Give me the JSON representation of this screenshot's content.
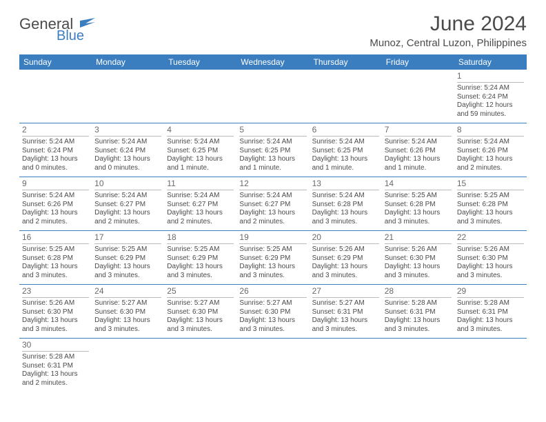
{
  "logo": {
    "textMain": "General",
    "textSub": "Blue"
  },
  "header": {
    "title": "June 2024",
    "subtitle": "Munoz, Central Luzon, Philippines"
  },
  "colors": {
    "headerBar": "#3b7ec0",
    "headerText": "#ffffff",
    "bodyText": "#4a4a4a",
    "dayNumBorder": "#bbbbbb",
    "rowBorder": "#3b7ec0"
  },
  "dayHeaders": [
    "Sunday",
    "Monday",
    "Tuesday",
    "Wednesday",
    "Thursday",
    "Friday",
    "Saturday"
  ],
  "weeks": [
    [
      null,
      null,
      null,
      null,
      null,
      null,
      {
        "n": "1",
        "sr": "Sunrise: 5:24 AM",
        "ss": "Sunset: 6:24 PM",
        "dl": "Daylight: 12 hours and 59 minutes."
      }
    ],
    [
      {
        "n": "2",
        "sr": "Sunrise: 5:24 AM",
        "ss": "Sunset: 6:24 PM",
        "dl": "Daylight: 13 hours and 0 minutes."
      },
      {
        "n": "3",
        "sr": "Sunrise: 5:24 AM",
        "ss": "Sunset: 6:24 PM",
        "dl": "Daylight: 13 hours and 0 minutes."
      },
      {
        "n": "4",
        "sr": "Sunrise: 5:24 AM",
        "ss": "Sunset: 6:25 PM",
        "dl": "Daylight: 13 hours and 1 minute."
      },
      {
        "n": "5",
        "sr": "Sunrise: 5:24 AM",
        "ss": "Sunset: 6:25 PM",
        "dl": "Daylight: 13 hours and 1 minute."
      },
      {
        "n": "6",
        "sr": "Sunrise: 5:24 AM",
        "ss": "Sunset: 6:25 PM",
        "dl": "Daylight: 13 hours and 1 minute."
      },
      {
        "n": "7",
        "sr": "Sunrise: 5:24 AM",
        "ss": "Sunset: 6:26 PM",
        "dl": "Daylight: 13 hours and 1 minute."
      },
      {
        "n": "8",
        "sr": "Sunrise: 5:24 AM",
        "ss": "Sunset: 6:26 PM",
        "dl": "Daylight: 13 hours and 2 minutes."
      }
    ],
    [
      {
        "n": "9",
        "sr": "Sunrise: 5:24 AM",
        "ss": "Sunset: 6:26 PM",
        "dl": "Daylight: 13 hours and 2 minutes."
      },
      {
        "n": "10",
        "sr": "Sunrise: 5:24 AM",
        "ss": "Sunset: 6:27 PM",
        "dl": "Daylight: 13 hours and 2 minutes."
      },
      {
        "n": "11",
        "sr": "Sunrise: 5:24 AM",
        "ss": "Sunset: 6:27 PM",
        "dl": "Daylight: 13 hours and 2 minutes."
      },
      {
        "n": "12",
        "sr": "Sunrise: 5:24 AM",
        "ss": "Sunset: 6:27 PM",
        "dl": "Daylight: 13 hours and 2 minutes."
      },
      {
        "n": "13",
        "sr": "Sunrise: 5:24 AM",
        "ss": "Sunset: 6:28 PM",
        "dl": "Daylight: 13 hours and 3 minutes."
      },
      {
        "n": "14",
        "sr": "Sunrise: 5:25 AM",
        "ss": "Sunset: 6:28 PM",
        "dl": "Daylight: 13 hours and 3 minutes."
      },
      {
        "n": "15",
        "sr": "Sunrise: 5:25 AM",
        "ss": "Sunset: 6:28 PM",
        "dl": "Daylight: 13 hours and 3 minutes."
      }
    ],
    [
      {
        "n": "16",
        "sr": "Sunrise: 5:25 AM",
        "ss": "Sunset: 6:28 PM",
        "dl": "Daylight: 13 hours and 3 minutes."
      },
      {
        "n": "17",
        "sr": "Sunrise: 5:25 AM",
        "ss": "Sunset: 6:29 PM",
        "dl": "Daylight: 13 hours and 3 minutes."
      },
      {
        "n": "18",
        "sr": "Sunrise: 5:25 AM",
        "ss": "Sunset: 6:29 PM",
        "dl": "Daylight: 13 hours and 3 minutes."
      },
      {
        "n": "19",
        "sr": "Sunrise: 5:25 AM",
        "ss": "Sunset: 6:29 PM",
        "dl": "Daylight: 13 hours and 3 minutes."
      },
      {
        "n": "20",
        "sr": "Sunrise: 5:26 AM",
        "ss": "Sunset: 6:29 PM",
        "dl": "Daylight: 13 hours and 3 minutes."
      },
      {
        "n": "21",
        "sr": "Sunrise: 5:26 AM",
        "ss": "Sunset: 6:30 PM",
        "dl": "Daylight: 13 hours and 3 minutes."
      },
      {
        "n": "22",
        "sr": "Sunrise: 5:26 AM",
        "ss": "Sunset: 6:30 PM",
        "dl": "Daylight: 13 hours and 3 minutes."
      }
    ],
    [
      {
        "n": "23",
        "sr": "Sunrise: 5:26 AM",
        "ss": "Sunset: 6:30 PM",
        "dl": "Daylight: 13 hours and 3 minutes."
      },
      {
        "n": "24",
        "sr": "Sunrise: 5:27 AM",
        "ss": "Sunset: 6:30 PM",
        "dl": "Daylight: 13 hours and 3 minutes."
      },
      {
        "n": "25",
        "sr": "Sunrise: 5:27 AM",
        "ss": "Sunset: 6:30 PM",
        "dl": "Daylight: 13 hours and 3 minutes."
      },
      {
        "n": "26",
        "sr": "Sunrise: 5:27 AM",
        "ss": "Sunset: 6:30 PM",
        "dl": "Daylight: 13 hours and 3 minutes."
      },
      {
        "n": "27",
        "sr": "Sunrise: 5:27 AM",
        "ss": "Sunset: 6:31 PM",
        "dl": "Daylight: 13 hours and 3 minutes."
      },
      {
        "n": "28",
        "sr": "Sunrise: 5:28 AM",
        "ss": "Sunset: 6:31 PM",
        "dl": "Daylight: 13 hours and 3 minutes."
      },
      {
        "n": "29",
        "sr": "Sunrise: 5:28 AM",
        "ss": "Sunset: 6:31 PM",
        "dl": "Daylight: 13 hours and 3 minutes."
      }
    ],
    [
      {
        "n": "30",
        "sr": "Sunrise: 5:28 AM",
        "ss": "Sunset: 6:31 PM",
        "dl": "Daylight: 13 hours and 2 minutes."
      },
      null,
      null,
      null,
      null,
      null,
      null
    ]
  ]
}
